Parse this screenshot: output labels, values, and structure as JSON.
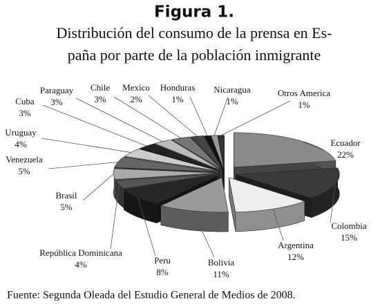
{
  "chart_data": {
    "type": "pie3d",
    "title": "Figura 1.",
    "subtitle": [
      "Distribución del consumo de la prensa en Es-",
      "paña por parte de la población inmigrante"
    ],
    "source": "Fuente: Segunda Oleada del Estudio General de Medios de 2008.",
    "categories": [
      "Ecuador",
      "Colombia",
      "Argentina",
      "Bolivia",
      "Peru",
      "República Dominicana",
      "Brasil",
      "Venezuela",
      "Uruguay",
      "Cuba",
      "Paraguay",
      "Chile",
      "Mexico",
      "Honduras",
      "Nicaragua",
      "Otros America"
    ],
    "values": [
      22,
      15,
      12,
      11,
      8,
      4,
      5,
      5,
      4,
      3,
      3,
      3,
      2,
      1,
      1,
      1
    ],
    "value_labels": [
      "22%",
      "15%",
      "12%",
      "11%",
      "8%",
      "4%",
      "5%",
      "5%",
      "4%",
      "3%",
      "3%",
      "3%",
      "2%",
      "1%",
      "1%",
      "1%"
    ],
    "colors": [
      "#8a8a8a",
      "#3a3a3a",
      "#eeeeee",
      "#9a9a9a",
      "#262626",
      "#555555",
      "#aaaaaa",
      "#666666",
      "#cccccc",
      "#222222",
      "#bbbbbb",
      "#777777",
      "#444444",
      "#111111",
      "#999999",
      "#333333"
    ]
  }
}
